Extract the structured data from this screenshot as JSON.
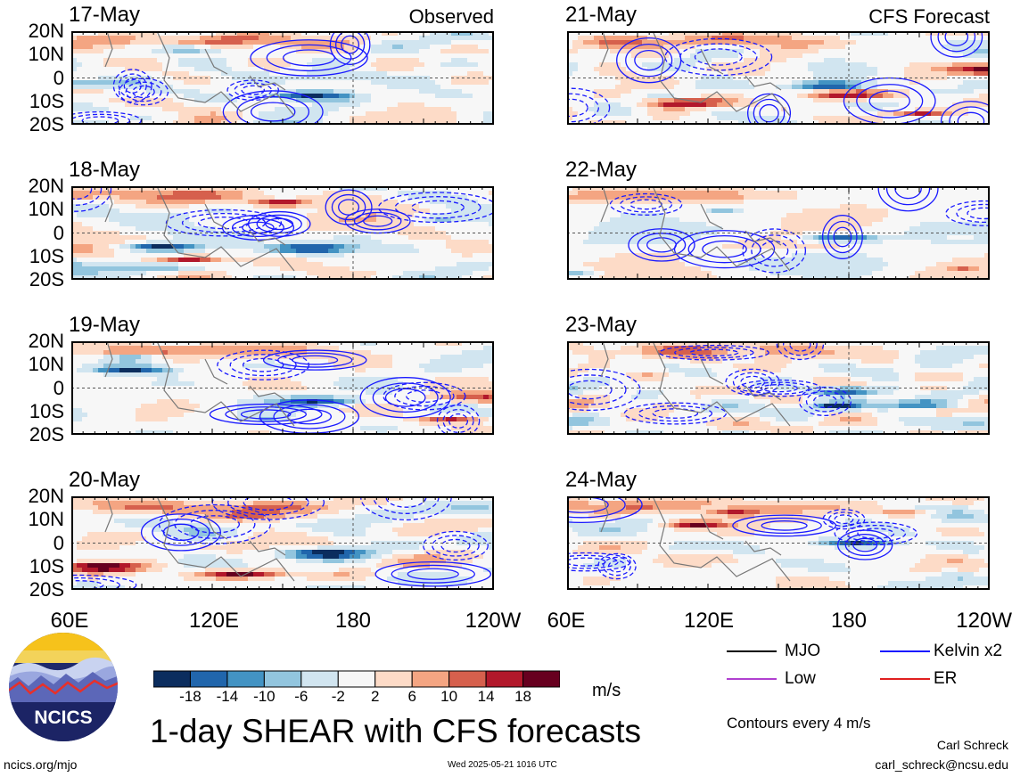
{
  "header": {
    "observed_label": "Observed",
    "forecast_label": "CFS Forecast"
  },
  "panels": {
    "observed": [
      "17-May",
      "18-May",
      "19-May",
      "20-May"
    ],
    "forecast": [
      "21-May",
      "22-May",
      "23-May",
      "24-May"
    ]
  },
  "axes": {
    "lat_labels": [
      "20N",
      "10N",
      "0",
      "10S",
      "20S"
    ],
    "lon_labels": [
      "60E",
      "120E",
      "180",
      "120W"
    ],
    "right_lon_labels": [
      "60E",
      "120E",
      "180",
      "120W"
    ]
  },
  "colorbar": {
    "tick_labels": [
      "-18",
      "-14",
      "-10",
      "-6",
      "-2",
      "2",
      "6",
      "10",
      "14",
      "18"
    ],
    "units": "m/s",
    "colors": [
      "#0b2d5e",
      "#2166ac",
      "#4393c3",
      "#92c5de",
      "#d1e5f0",
      "#f7f7f7",
      "#fddbc7",
      "#f4a582",
      "#d6604d",
      "#b2182b",
      "#67001f"
    ]
  },
  "legend": {
    "items": [
      {
        "label": "MJO",
        "color": "#000000"
      },
      {
        "label": "Kelvin x2",
        "color": "#1a1aff"
      },
      {
        "label": "Low",
        "color": "#b040d0"
      },
      {
        "label": "ER",
        "color": "#e02020"
      }
    ],
    "contour_note": "Contours every 4 m/s"
  },
  "footer": {
    "title": "1-day SHEAR with CFS forecasts",
    "logo_text": "NCICS",
    "site": "ncics.org/mjo",
    "timestamp": "Wed 2025-05-21 1016 UTC",
    "author": "Carl Schreck",
    "email": "carl_schreck@ncsu.edu"
  },
  "chart_data": {
    "type": "heatmap",
    "title": "1-day SHEAR with CFS forecasts",
    "variable": "shear",
    "units": "m/s",
    "x_range": [
      "60E",
      "120W"
    ],
    "y_range": [
      "20S",
      "20N"
    ],
    "color_levels": [
      -18,
      -14,
      -10,
      -6,
      -2,
      2,
      6,
      10,
      14,
      18
    ],
    "panels": [
      {
        "date": "17-May",
        "source": "Observed"
      },
      {
        "date": "18-May",
        "source": "Observed"
      },
      {
        "date": "19-May",
        "source": "Observed"
      },
      {
        "date": "20-May",
        "source": "Observed"
      },
      {
        "date": "21-May",
        "source": "CFS Forecast"
      },
      {
        "date": "22-May",
        "source": "CFS Forecast"
      },
      {
        "date": "23-May",
        "source": "CFS Forecast"
      },
      {
        "date": "24-May",
        "source": "CFS Forecast"
      }
    ],
    "contour_interval": 4
  }
}
